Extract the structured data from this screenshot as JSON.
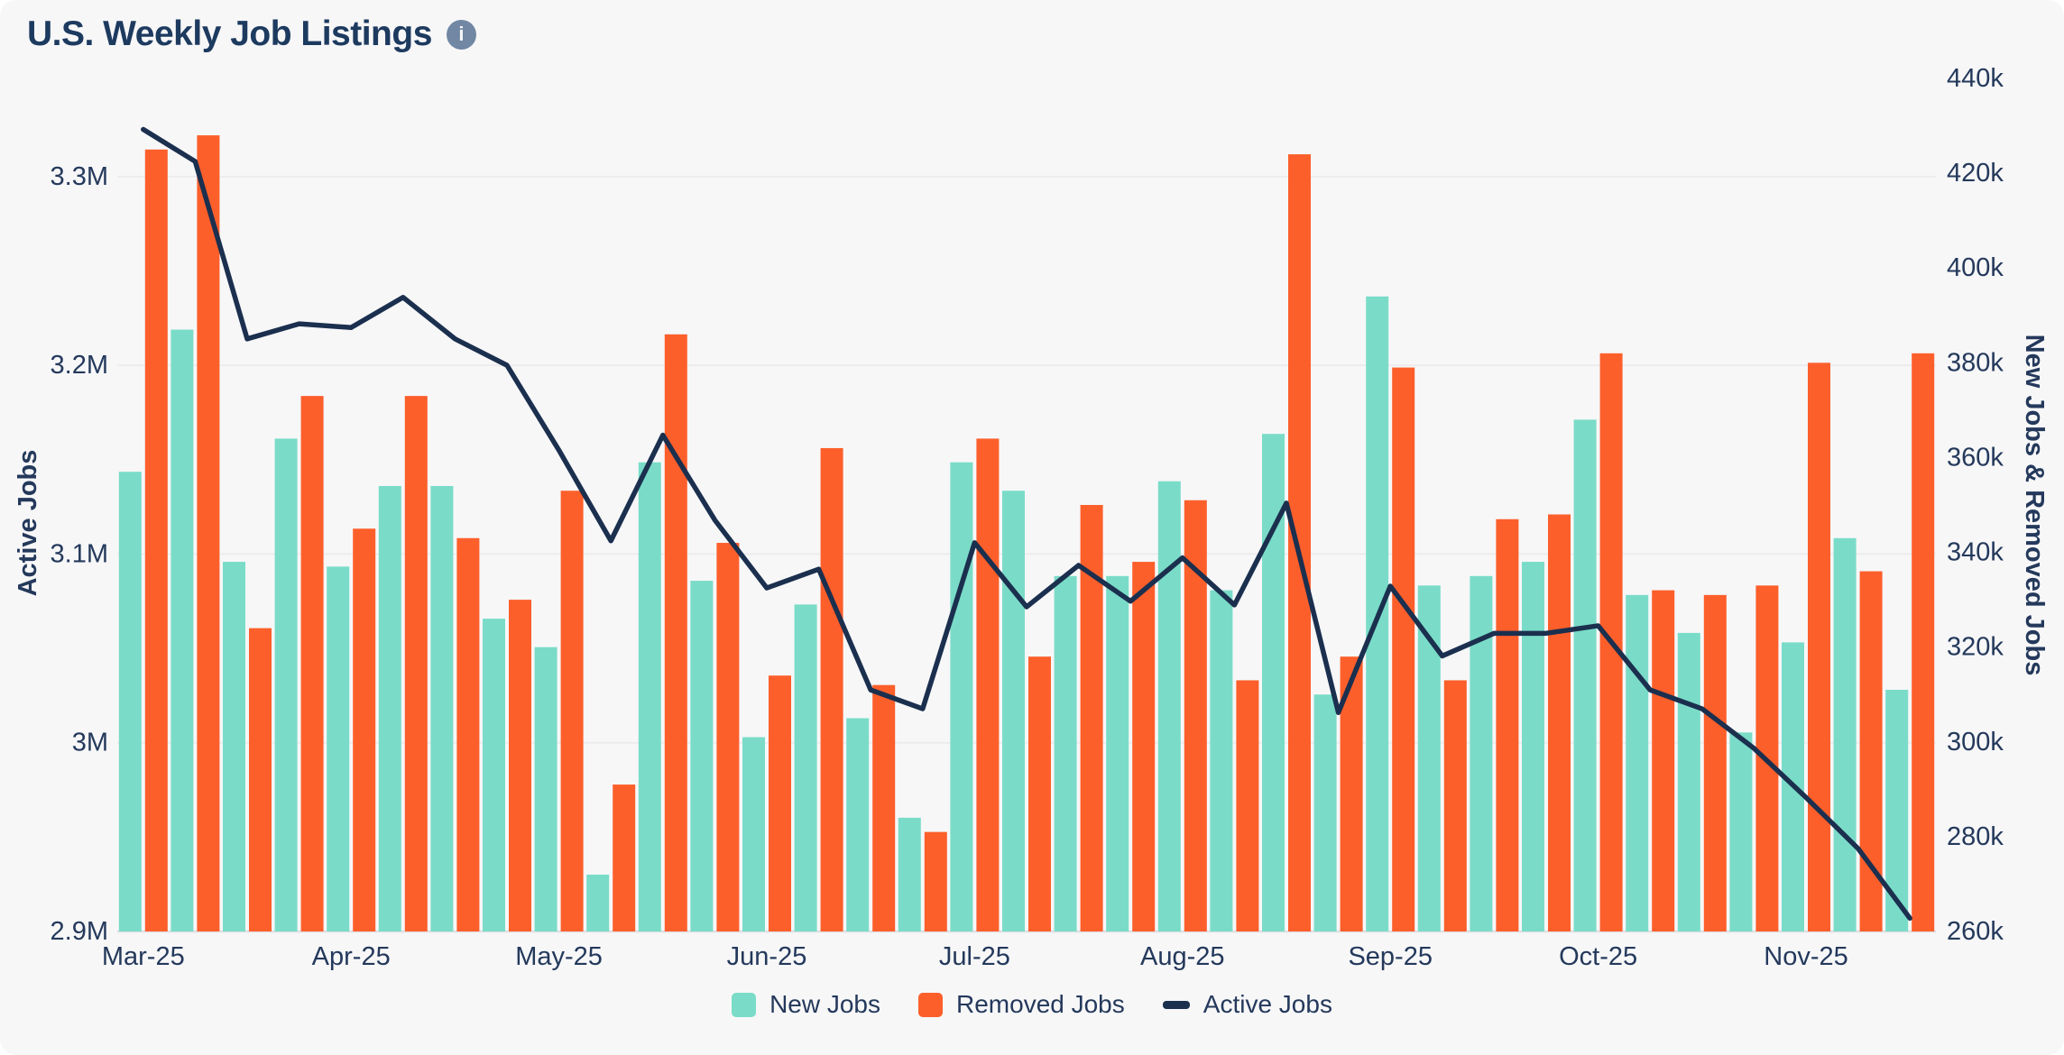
{
  "colors": {
    "background": "#f7f7f8",
    "title_text": "#1d3a5f",
    "tick_text": "#24395b",
    "gridline": "#ececee",
    "axis_line": "#dfdfe2",
    "new_jobs": "#7adcc8",
    "removed_jobs": "#fd5f2b",
    "active_jobs": "#1b2f4e",
    "info_icon_bg": "#7187a3"
  },
  "header": {
    "title": "U.S. Weekly Job Listings",
    "info_glyph": "i"
  },
  "legend": {
    "position": "bottom-center",
    "items": [
      {
        "label": "New Jobs",
        "color": "#7adcc8",
        "shape": "square"
      },
      {
        "label": "Removed Jobs",
        "color": "#fd5f2b",
        "shape": "square"
      },
      {
        "label": "Active Jobs",
        "color": "#1b2f4e",
        "shape": "dash"
      }
    ]
  },
  "chart_data": {
    "type": "bar",
    "subtype": "grouped-weekly-bars-with-line-overlay",
    "title": "U.S. Weekly Job Listings",
    "weeks": 35,
    "grid": "horizontal-only",
    "x_axis": {
      "ticks": [
        {
          "label": "Mar-25",
          "week_index": 0
        },
        {
          "label": "Apr-25",
          "week_index": 4
        },
        {
          "label": "May-25",
          "week_index": 8
        },
        {
          "label": "Jun-25",
          "week_index": 12
        },
        {
          "label": "Jul-25",
          "week_index": 16
        },
        {
          "label": "Aug-25",
          "week_index": 20
        },
        {
          "label": "Sep-25",
          "week_index": 24
        },
        {
          "label": "Oct-25",
          "week_index": 28
        },
        {
          "label": "Nov-25",
          "week_index": 32
        }
      ]
    },
    "left_axis": {
      "label": "Active Jobs",
      "unit": "millions",
      "min": 2.9,
      "max": 3.352,
      "gridline_values": [
        3.3,
        3.2,
        3.1,
        3.0
      ],
      "ticks": [
        {
          "label": "3.3M",
          "value": 3.3
        },
        {
          "label": "3.2M",
          "value": 3.2
        },
        {
          "label": "3.1M",
          "value": 3.1
        },
        {
          "label": "3M",
          "value": 3.0
        },
        {
          "label": "2.9M",
          "value": 2.9
        }
      ]
    },
    "right_axis": {
      "label": "New Jobs & Removed Jobs",
      "unit": "thousands",
      "min": 260,
      "max": 440,
      "tick_step": 20,
      "ticks": [
        "440k",
        "420k",
        "400k",
        "380k",
        "360k",
        "340k",
        "320k",
        "300k",
        "280k",
        "260k"
      ]
    },
    "series": [
      {
        "name": "New Jobs",
        "chart_type": "bar",
        "axis": "right",
        "color": "#7adcc8",
        "values_thousands": [
          357,
          387,
          338,
          364,
          337,
          354,
          354,
          326,
          320,
          272,
          359,
          334,
          301,
          329,
          305,
          284,
          359,
          353,
          335,
          335,
          355,
          332,
          365,
          310,
          394,
          333,
          335,
          338,
          368,
          331,
          323,
          302,
          321,
          343,
          311
        ]
      },
      {
        "name": "Removed Jobs",
        "chart_type": "bar",
        "axis": "right",
        "color": "#fd5f2b",
        "values_thousands": [
          425,
          428,
          324,
          373,
          345,
          373,
          343,
          330,
          353,
          291,
          386,
          342,
          314,
          362,
          312,
          281,
          364,
          318,
          350,
          338,
          351,
          313,
          424,
          318,
          379,
          313,
          347,
          348,
          382,
          332,
          331,
          333,
          380,
          336,
          382
        ]
      },
      {
        "name": "Active Jobs",
        "chart_type": "line",
        "axis": "left",
        "color": "#1b2f4e",
        "values_millions": [
          3.325,
          3.308,
          3.214,
          3.222,
          3.22,
          3.236,
          3.214,
          3.2,
          3.155,
          3.107,
          3.163,
          3.118,
          3.082,
          3.092,
          3.028,
          3.018,
          3.106,
          3.072,
          3.094,
          3.075,
          3.098,
          3.073,
          3.127,
          3.016,
          3.083,
          3.046,
          3.058,
          3.058,
          3.062,
          3.028,
          3.018,
          2.997,
          2.971,
          2.944,
          2.907
        ]
      }
    ]
  }
}
